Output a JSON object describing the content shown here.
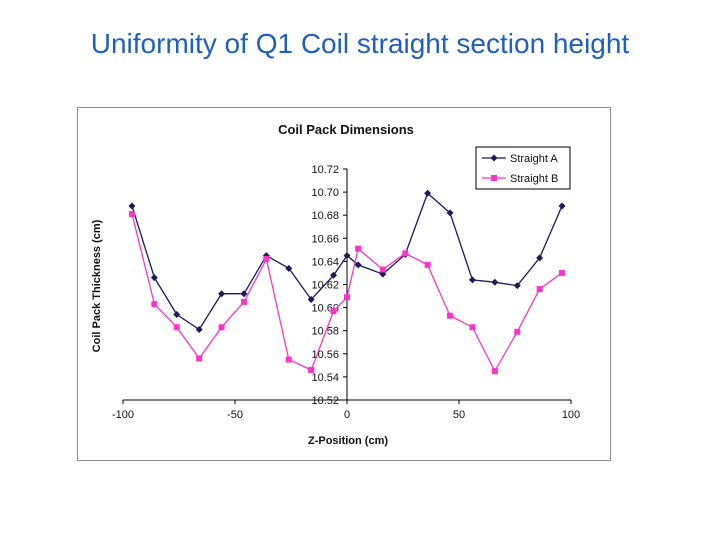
{
  "slide": {
    "title": "Uniformity of Q1 Coil straight section height"
  },
  "chart_data": {
    "type": "line",
    "title": "Coil Pack Dimensions",
    "xlabel": "Z-Position (cm)",
    "ylabel": "Coil Pack Thickness (cm)",
    "xlim": [
      -100,
      100
    ],
    "ylim": [
      10.52,
      10.72
    ],
    "xticks": [
      "-100",
      "-50",
      "0",
      "50",
      "100"
    ],
    "xtick_values": [
      -100,
      -50,
      0,
      50,
      100
    ],
    "yticks": [
      "10.72",
      "10.70",
      "10.68",
      "10.66",
      "10.64",
      "10.62",
      "10.60",
      "10.58",
      "10.56",
      "10.54",
      "10.52"
    ],
    "ytick_values": [
      10.72,
      10.7,
      10.68,
      10.66,
      10.64,
      10.62,
      10.6,
      10.58,
      10.56,
      10.54,
      10.52
    ],
    "legend_position": "top-right",
    "series": [
      {
        "name": "Straight A",
        "color": "#1a1a5e",
        "marker": "diamond",
        "x": [
          -96,
          -86,
          -76,
          -66,
          -56,
          -46,
          -36,
          -26,
          -16,
          -6,
          0,
          5,
          16,
          26,
          36,
          46,
          56,
          66,
          76,
          86,
          96
        ],
        "y": [
          10.688,
          10.626,
          10.594,
          10.581,
          10.612,
          10.612,
          10.645,
          10.634,
          10.607,
          10.628,
          10.645,
          10.637,
          10.629,
          10.646,
          10.699,
          10.682,
          10.624,
          10.622,
          10.619,
          10.643,
          10.688
        ]
      },
      {
        "name": "Straight B",
        "color": "#ff33cc",
        "marker": "square",
        "x": [
          -96,
          -86,
          -76,
          -66,
          -56,
          -46,
          -36,
          -26,
          -16,
          -6,
          0,
          5,
          16,
          26,
          36,
          46,
          56,
          66,
          76,
          86,
          96
        ],
        "y": [
          10.681,
          10.603,
          10.583,
          10.556,
          10.583,
          10.605,
          10.642,
          10.555,
          10.546,
          10.597,
          10.609,
          10.651,
          10.633,
          10.647,
          10.637,
          10.593,
          10.583,
          10.545,
          10.579,
          10.616,
          10.63
        ]
      }
    ]
  }
}
